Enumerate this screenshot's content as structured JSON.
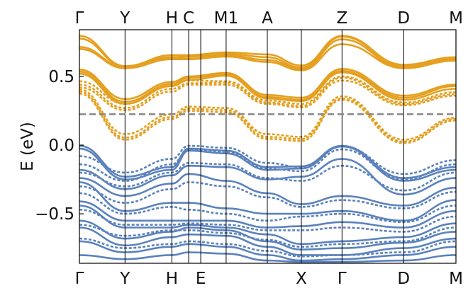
{
  "chart_data": {
    "type": "line",
    "title": "",
    "xlabel": "",
    "ylabel": "E (eV)",
    "ylim": [
      -0.86,
      0.84
    ],
    "yticks": [
      {
        "value": 0.5,
        "label": "0.5"
      },
      {
        "value": 0.0,
        "label": "0.0"
      },
      {
        "value": -0.5,
        "label": "−0.5"
      }
    ],
    "k_points": [
      0,
      0.185,
      0.375,
      0.443,
      0.595,
      0.762,
      0.9,
      1.065,
      1.315,
      1.527
    ],
    "k_max": 1.527,
    "top_labels": [
      {
        "label": "Γ",
        "k": 0
      },
      {
        "label": "Y",
        "k": 0.185
      },
      {
        "label": "H",
        "k": 0.375
      },
      {
        "label": "C",
        "k": 0.443
      },
      {
        "label": "M1",
        "k": 0.595
      },
      {
        "label": "A",
        "k": 0.762
      },
      {
        "label": "Z",
        "k": 1.065
      },
      {
        "label": "D",
        "k": 1.315
      },
      {
        "label": "M",
        "k": 1.527
      }
    ],
    "bottom_labels": [
      {
        "label": "Γ",
        "k": 0
      },
      {
        "label": "Y",
        "k": 0.185
      },
      {
        "label": "H",
        "k": 0.375
      },
      {
        "label": "E",
        "k": 0.492
      },
      {
        "label": "X",
        "k": 0.9
      },
      {
        "label": "Γ",
        "k": 1.065
      },
      {
        "label": "D",
        "k": 1.315
      },
      {
        "label": "M",
        "k": 1.527
      }
    ],
    "reference_line": {
      "y": 0.225,
      "style": "dashed",
      "color": "#888888"
    },
    "colors": {
      "conduction": "#E5A020",
      "valence": "#5B82BD",
      "frame": "#000000",
      "divider": "#000000"
    },
    "series": [
      {
        "band": "conduction",
        "style": "solid",
        "values": [
          0.795,
          0.575,
          0.655,
          0.655,
          0.675,
          0.66,
          0.58,
          0.795,
          0.585,
          0.64
        ]
      },
      {
        "band": "conduction",
        "style": "solid",
        "values": [
          0.775,
          0.57,
          0.64,
          0.645,
          0.665,
          0.64,
          0.565,
          0.79,
          0.575,
          0.63
        ]
      },
      {
        "band": "conduction",
        "style": "solid",
        "values": [
          0.715,
          0.565,
          0.63,
          0.63,
          0.655,
          0.62,
          0.555,
          0.77,
          0.565,
          0.625
        ]
      },
      {
        "band": "conduction",
        "style": "solid",
        "values": [
          0.7,
          0.56,
          0.625,
          0.625,
          0.645,
          0.605,
          0.545,
          0.735,
          0.56,
          0.615
        ]
      },
      {
        "band": "conduction",
        "style": "solid",
        "values": [
          0.55,
          0.335,
          0.46,
          0.5,
          0.525,
          0.365,
          0.345,
          0.555,
          0.36,
          0.44
        ]
      },
      {
        "band": "conduction",
        "style": "solid",
        "values": [
          0.535,
          0.315,
          0.445,
          0.49,
          0.515,
          0.35,
          0.33,
          0.54,
          0.345,
          0.43
        ]
      },
      {
        "band": "conduction",
        "style": "solid",
        "values": [
          0.52,
          0.3,
          0.43,
          0.475,
          0.505,
          0.34,
          0.32,
          0.53,
          0.33,
          0.41
        ]
      },
      {
        "band": "conduction",
        "style": "dashed",
        "values": [
          0.465,
          0.3,
          0.44,
          0.47,
          0.465,
          0.325,
          0.3,
          0.5,
          0.31,
          0.385
        ]
      },
      {
        "band": "conduction",
        "style": "dashed",
        "values": [
          0.44,
          0.27,
          0.41,
          0.45,
          0.455,
          0.31,
          0.285,
          0.49,
          0.3,
          0.37
        ]
      },
      {
        "band": "conduction",
        "style": "dashed",
        "values": [
          0.42,
          0.255,
          0.39,
          0.44,
          0.44,
          0.3,
          0.275,
          0.47,
          0.29,
          0.36
        ]
      },
      {
        "band": "conduction",
        "style": "dashed",
        "values": [
          0.405,
          0.08,
          0.225,
          0.28,
          0.27,
          0.08,
          0.06,
          0.355,
          0.04,
          0.2
        ]
      },
      {
        "band": "conduction",
        "style": "dashed",
        "values": [
          0.39,
          0.055,
          0.205,
          0.265,
          0.255,
          0.06,
          0.045,
          0.34,
          0.025,
          0.19
        ]
      },
      {
        "band": "conduction",
        "style": "dashed",
        "values": [
          0.375,
          0.04,
          0.19,
          0.25,
          0.24,
          0.045,
          0.03,
          0.33,
          0.015,
          0.18
        ]
      },
      {
        "band": "valence",
        "style": "solid",
        "values": [
          -0.005,
          -0.23,
          -0.16,
          -0.025,
          -0.04,
          -0.16,
          -0.155,
          -0.005,
          -0.24,
          -0.16
        ]
      },
      {
        "band": "valence",
        "style": "solid",
        "values": [
          -0.025,
          -0.25,
          -0.18,
          -0.04,
          -0.06,
          -0.18,
          -0.17,
          -0.01,
          -0.26,
          -0.18
        ]
      },
      {
        "band": "valence",
        "style": "solid",
        "values": [
          -0.18,
          -0.32,
          -0.22,
          -0.15,
          -0.16,
          -0.25,
          -0.23,
          -0.1,
          -0.36,
          -0.24
        ]
      },
      {
        "band": "valence",
        "style": "solid",
        "values": [
          -0.24,
          -0.37,
          -0.28,
          -0.21,
          -0.26,
          -0.35,
          -0.43,
          -0.37,
          -0.44,
          -0.31
        ]
      },
      {
        "band": "valence",
        "style": "solid",
        "values": [
          -0.27,
          -0.48,
          -0.42,
          -0.42,
          -0.46,
          -0.5,
          -0.5,
          -0.48,
          -0.55,
          -0.4
        ]
      },
      {
        "band": "valence",
        "style": "solid",
        "values": [
          -0.41,
          -0.55,
          -0.55,
          -0.55,
          -0.55,
          -0.6,
          -0.59,
          -0.56,
          -0.6,
          -0.48
        ]
      },
      {
        "band": "valence",
        "style": "solid",
        "values": [
          -0.44,
          -0.6,
          -0.6,
          -0.58,
          -0.6,
          -0.65,
          -0.72,
          -0.7,
          -0.67,
          -0.57
        ]
      },
      {
        "band": "valence",
        "style": "solid",
        "values": [
          -0.55,
          -0.68,
          -0.63,
          -0.6,
          -0.62,
          -0.7,
          -0.76,
          -0.75,
          -0.71,
          -0.63
        ]
      },
      {
        "band": "valence",
        "style": "solid",
        "values": [
          -0.6,
          -0.73,
          -0.67,
          -0.65,
          -0.66,
          -0.74,
          -0.8,
          -0.8,
          -0.75,
          -0.68
        ]
      },
      {
        "band": "valence",
        "style": "solid",
        "values": [
          -0.7,
          -0.78,
          -0.74,
          -0.72,
          -0.74,
          -0.8,
          -0.84,
          -0.83,
          -0.8,
          -0.74
        ]
      },
      {
        "band": "valence",
        "style": "solid",
        "values": [
          -0.8,
          -0.83,
          -0.8,
          -0.78,
          -0.79,
          -0.84,
          -0.85,
          -0.85,
          -0.84,
          -0.8
        ]
      },
      {
        "band": "valence",
        "style": "dashed",
        "values": [
          -0.08,
          -0.2,
          -0.1,
          -0.005,
          -0.02,
          -0.13,
          -0.16,
          -0.01,
          -0.21,
          -0.11
        ]
      },
      {
        "band": "valence",
        "style": "dashed",
        "values": [
          -0.14,
          -0.26,
          -0.14,
          -0.035,
          -0.05,
          -0.17,
          -0.19,
          -0.03,
          -0.25,
          -0.14
        ]
      },
      {
        "band": "valence",
        "style": "dashed",
        "values": [
          -0.2,
          -0.3,
          -0.2,
          -0.13,
          -0.14,
          -0.24,
          -0.26,
          -0.15,
          -0.33,
          -0.2
        ]
      },
      {
        "band": "valence",
        "style": "dashed",
        "values": [
          -0.3,
          -0.42,
          -0.32,
          -0.27,
          -0.3,
          -0.38,
          -0.45,
          -0.4,
          -0.46,
          -0.34
        ]
      },
      {
        "band": "valence",
        "style": "dashed",
        "values": [
          -0.35,
          -0.5,
          -0.45,
          -0.47,
          -0.5,
          -0.55,
          -0.52,
          -0.5,
          -0.56,
          -0.44
        ]
      },
      {
        "band": "valence",
        "style": "dashed",
        "values": [
          -0.47,
          -0.58,
          -0.58,
          -0.57,
          -0.58,
          -0.62,
          -0.62,
          -0.6,
          -0.63,
          -0.52
        ]
      },
      {
        "band": "valence",
        "style": "dashed",
        "values": [
          -0.58,
          -0.66,
          -0.62,
          -0.62,
          -0.64,
          -0.69,
          -0.74,
          -0.72,
          -0.7,
          -0.6
        ]
      },
      {
        "band": "valence",
        "style": "dashed",
        "values": [
          -0.68,
          -0.75,
          -0.72,
          -0.7,
          -0.72,
          -0.77,
          -0.81,
          -0.8,
          -0.78,
          -0.7
        ]
      }
    ]
  }
}
